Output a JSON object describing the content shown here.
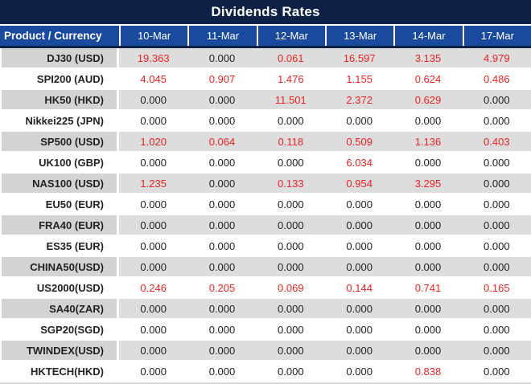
{
  "title": "Dividends Rates",
  "colors": {
    "title_bg": "#0D2147",
    "header_bg": "#1A4A9E",
    "header_text": "#FFFFFF",
    "alt_row_label_bg": "#D3D3D3",
    "alt_row_data_bg": "#DDDDDD",
    "nonzero_value": "#EE2222",
    "zero_value": "#222222"
  },
  "chart_data": {
    "type": "table",
    "title": "Dividends Rates",
    "columns": [
      "Product / Currency",
      "10-Mar",
      "11-Mar",
      "12-Mar",
      "13-Mar",
      "14-Mar",
      "17-Mar"
    ],
    "rows": [
      {
        "label": "DJ30 (USD)",
        "values": [
          "19.363",
          "0.000",
          "0.061",
          "16.597",
          "3.135",
          "4.979"
        ]
      },
      {
        "label": "SPI200 (AUD)",
        "values": [
          "4.045",
          "0.907",
          "1.476",
          "1.155",
          "0.624",
          "0.486"
        ]
      },
      {
        "label": "HK50 (HKD)",
        "values": [
          "0.000",
          "0.000",
          "11.501",
          "2.372",
          "0.629",
          "0.000"
        ]
      },
      {
        "label": "Nikkei225 (JPN)",
        "values": [
          "0.000",
          "0.000",
          "0.000",
          "0.000",
          "0.000",
          "0.000"
        ]
      },
      {
        "label": "SP500 (USD)",
        "values": [
          "1.020",
          "0.064",
          "0.118",
          "0.509",
          "1.136",
          "0.403"
        ]
      },
      {
        "label": "UK100 (GBP)",
        "values": [
          "0.000",
          "0.000",
          "0.000",
          "6.034",
          "0.000",
          "0.000"
        ]
      },
      {
        "label": "NAS100 (USD)",
        "values": [
          "1.235",
          "0.000",
          "0.133",
          "0.954",
          "3.295",
          "0.000"
        ]
      },
      {
        "label": "EU50 (EUR)",
        "values": [
          "0.000",
          "0.000",
          "0.000",
          "0.000",
          "0.000",
          "0.000"
        ]
      },
      {
        "label": "FRA40 (EUR)",
        "values": [
          "0.000",
          "0.000",
          "0.000",
          "0.000",
          "0.000",
          "0.000"
        ]
      },
      {
        "label": "ES35 (EUR)",
        "values": [
          "0.000",
          "0.000",
          "0.000",
          "0.000",
          "0.000",
          "0.000"
        ]
      },
      {
        "label": "CHINA50(USD)",
        "values": [
          "0.000",
          "0.000",
          "0.000",
          "0.000",
          "0.000",
          "0.000"
        ]
      },
      {
        "label": "US2000(USD)",
        "values": [
          "0.246",
          "0.205",
          "0.069",
          "0.144",
          "0.741",
          "0.165"
        ]
      },
      {
        "label": "SA40(ZAR)",
        "values": [
          "0.000",
          "0.000",
          "0.000",
          "0.000",
          "0.000",
          "0.000"
        ]
      },
      {
        "label": "SGP20(SGD)",
        "values": [
          "0.000",
          "0.000",
          "0.000",
          "0.000",
          "0.000",
          "0.000"
        ]
      },
      {
        "label": "TWINDEX(USD)",
        "values": [
          "0.000",
          "0.000",
          "0.000",
          "0.000",
          "0.000",
          "0.000"
        ]
      },
      {
        "label": "HKTECH(HKD)",
        "values": [
          "0.000",
          "0.000",
          "0.000",
          "0.000",
          "0.838",
          "0.000"
        ]
      }
    ]
  }
}
